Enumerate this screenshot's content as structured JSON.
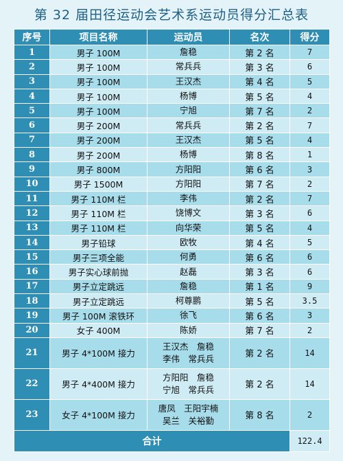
{
  "title": "第 32 届田径运动会艺术系运动员得分汇总表",
  "headers": {
    "no": "序号",
    "event": "项目名称",
    "athlete": "运动员",
    "rank": "名次",
    "score": "得分"
  },
  "rows": [
    {
      "no": "1",
      "event": "男子 100M",
      "athletes": [
        "詹稳"
      ],
      "rank": "第 2 名",
      "score": "7"
    },
    {
      "no": "2",
      "event": "男子 100M",
      "athletes": [
        "常兵兵"
      ],
      "rank": "第 3 名",
      "score": "6"
    },
    {
      "no": "3",
      "event": "男子 100M",
      "athletes": [
        "王汉杰"
      ],
      "rank": "第 4 名",
      "score": "5"
    },
    {
      "no": "4",
      "event": "男子 100M",
      "athletes": [
        "杨博"
      ],
      "rank": "第 5 名",
      "score": "4"
    },
    {
      "no": "5",
      "event": "男子 100M",
      "athletes": [
        "宁旭"
      ],
      "rank": "第 7 名",
      "score": "2"
    },
    {
      "no": "6",
      "event": "男子 200M",
      "athletes": [
        "常兵兵"
      ],
      "rank": "第 2 名",
      "score": "7"
    },
    {
      "no": "7",
      "event": "男子 200M",
      "athletes": [
        "王汉杰"
      ],
      "rank": "第 5 名",
      "score": "4"
    },
    {
      "no": "8",
      "event": "男子 200M",
      "athletes": [
        "杨博"
      ],
      "rank": "第 8 名",
      "score": "1"
    },
    {
      "no": "9",
      "event": "男子 800M",
      "athletes": [
        "方阳阳"
      ],
      "rank": "第 6 名",
      "score": "3"
    },
    {
      "no": "10",
      "event": "男子 1500M",
      "athletes": [
        "方阳阳"
      ],
      "rank": "第 7 名",
      "score": "2"
    },
    {
      "no": "11",
      "event": "男子 110M 栏",
      "athletes": [
        "李伟"
      ],
      "rank": "第 2 名",
      "score": "7"
    },
    {
      "no": "12",
      "event": "男子 110M 栏",
      "athletes": [
        "饶博文"
      ],
      "rank": "第 3 名",
      "score": "6"
    },
    {
      "no": "13",
      "event": "男子 110M 栏",
      "athletes": [
        "向华荣"
      ],
      "rank": "第 5 名",
      "score": "4"
    },
    {
      "no": "14",
      "event": "男子铅球",
      "athletes": [
        "欧牧"
      ],
      "rank": "第 4 名",
      "score": "5"
    },
    {
      "no": "15",
      "event": "男子三项全能",
      "athletes": [
        "何勇"
      ],
      "rank": "第 6 名",
      "score": "6"
    },
    {
      "no": "16",
      "event": "男子实心球前抛",
      "athletes": [
        "赵磊"
      ],
      "rank": "第 3 名",
      "score": "6"
    },
    {
      "no": "17",
      "event": "男子立定跳远",
      "athletes": [
        "詹稳"
      ],
      "rank": "第 1 名",
      "score": "9"
    },
    {
      "no": "18",
      "event": "男子立定跳远",
      "athletes": [
        "柯尊鹏"
      ],
      "rank": "第 5 名",
      "score": "3.5"
    },
    {
      "no": "19",
      "event": "男子 100M 滚铁环",
      "athletes": [
        "徐飞"
      ],
      "rank": "第 6 名",
      "score": "3"
    },
    {
      "no": "20",
      "event": "女子 400M",
      "athletes": [
        "陈娇"
      ],
      "rank": "第 7 名",
      "score": "2"
    },
    {
      "no": "21",
      "event": "男子 4*100M 接力",
      "athletes": [
        "王汉杰　詹稳",
        "李伟　常兵兵"
      ],
      "rank": "第 2 名",
      "score": "14"
    },
    {
      "no": "22",
      "event": "男子 4*400M 接力",
      "athletes": [
        "方阳阳　詹稳",
        "宁旭　常兵兵"
      ],
      "rank": "第 2 名",
      "score": "14"
    },
    {
      "no": "23",
      "event": "女子 4*100M 接力",
      "athletes": [
        "唐凤　王阳宇楠",
        "吴兰　关裕勤"
      ],
      "rank": "第 8 名",
      "score": "2"
    }
  ],
  "total": {
    "label": "合计",
    "value": "122.4"
  },
  "colors": {
    "header": "#2f8eb4",
    "row_odd": "#a7dcea",
    "row_even": "#cfecf5",
    "title": "#1f5f86",
    "background": "#e3f3f7"
  }
}
